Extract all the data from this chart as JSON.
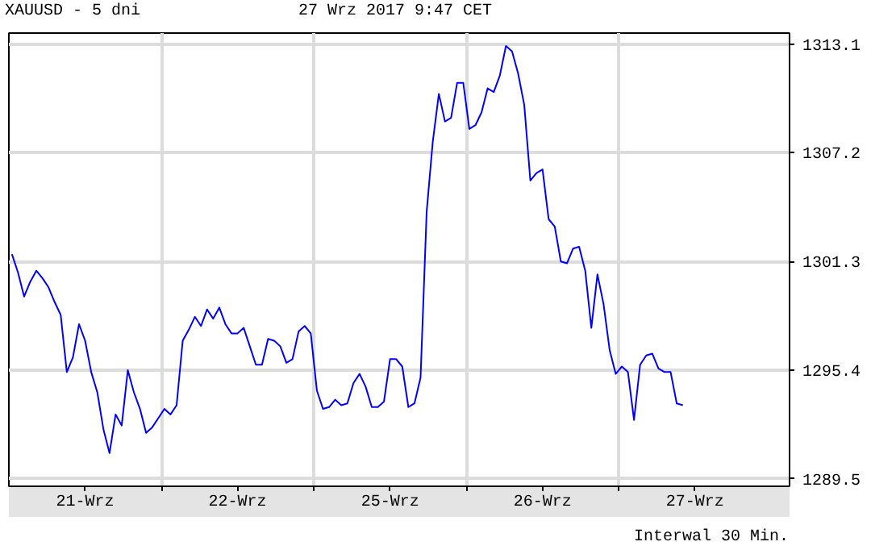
{
  "chart_data": {
    "type": "line",
    "title": "XAUUSD - 5 dni",
    "subtitle": "27 Wrz 2017 9:47 CET",
    "annotations": [
      "Interwal 30 Min."
    ],
    "categories": [
      null,
      null,
      null,
      null,
      null,
      null,
      null,
      null,
      null,
      null,
      null,
      null,
      "21-Wrz",
      null,
      null,
      null,
      null,
      null,
      null,
      null,
      null,
      null,
      null,
      null,
      null,
      null,
      null,
      null,
      null,
      null,
      null,
      null,
      null,
      null,
      null,
      null,
      null,
      "22-Wrz",
      null,
      null,
      null,
      null,
      null,
      null,
      null,
      null,
      null,
      null,
      null,
      null,
      null,
      null,
      null,
      null,
      null,
      null,
      null,
      null,
      null,
      null,
      null,
      null,
      "25-Wrz",
      null,
      null,
      null,
      null,
      null,
      null,
      null,
      null,
      null,
      null,
      null,
      null,
      null,
      null,
      null,
      null,
      null,
      null,
      null,
      null,
      null,
      null,
      null,
      null,
      "26-Wrz",
      null,
      null,
      null,
      null,
      null,
      null,
      null,
      null,
      null,
      null,
      null,
      null,
      null,
      null,
      null,
      null,
      null,
      null,
      null,
      null,
      null,
      null,
      null,
      null,
      "27-Wrz",
      null,
      null,
      null,
      null,
      null,
      null,
      null,
      null,
      null,
      null,
      null,
      null,
      null,
      null,
      null
    ],
    "series": [
      {
        "color": "#0000ff",
        "values": [
          1301.7,
          1300.7,
          1299.4,
          1300.2,
          1300.8,
          1300.4,
          1299.9,
          1299.1,
          1298.4,
          1295.3,
          1296.1,
          1297.9,
          1297.0,
          1295.3,
          1294.2,
          1292.2,
          1290.9,
          1293.0,
          1292.4,
          1295.4,
          1294.2,
          1293.3,
          1292.0,
          1292.3,
          1292.8,
          1293.3,
          1293.0,
          1293.5,
          1297.0,
          1297.6,
          1298.3,
          1297.8,
          1298.7,
          1298.2,
          1298.8,
          1297.9,
          1297.4,
          1297.4,
          1297.7,
          1296.7,
          1295.7,
          1295.7,
          1297.1,
          1297.0,
          1296.7,
          1295.8,
          1296.0,
          1297.5,
          1297.8,
          1297.4,
          1294.3,
          1293.3,
          1293.4,
          1293.8,
          1293.5,
          1293.6,
          1294.7,
          1295.2,
          1294.5,
          1293.4,
          1293.4,
          1293.7,
          1296.0,
          1296.0,
          1295.6,
          1293.4,
          1293.6,
          1295.0,
          1304.0,
          1307.8,
          1310.4,
          1308.9,
          1309.1,
          1311.0,
          1311.0,
          1308.5,
          1308.7,
          1309.4,
          1310.7,
          1310.5,
          1311.4,
          1313.0,
          1312.7,
          1311.5,
          1309.8,
          1305.7,
          1306.1,
          1306.3,
          1303.6,
          1303.2,
          1301.3,
          1301.2,
          1302.0,
          1302.1,
          1300.8,
          1297.7,
          1300.6,
          1299.0,
          1296.5,
          1295.2,
          1295.6,
          1295.3,
          1292.7,
          1295.7,
          1296.2,
          1296.3,
          1295.5,
          1295.3,
          1295.3,
          1293.6,
          1293.5,
          null,
          null,
          null,
          null,
          null,
          null,
          null,
          null,
          null,
          null,
          null,
          null,
          null,
          null,
          null,
          null,
          null
        ]
      }
    ],
    "ylim": [
      1289.1,
      1313.7
    ],
    "yticks": [
      1289.5,
      1295.4,
      1301.3,
      1307.2,
      1313.1
    ],
    "grid": true
  }
}
